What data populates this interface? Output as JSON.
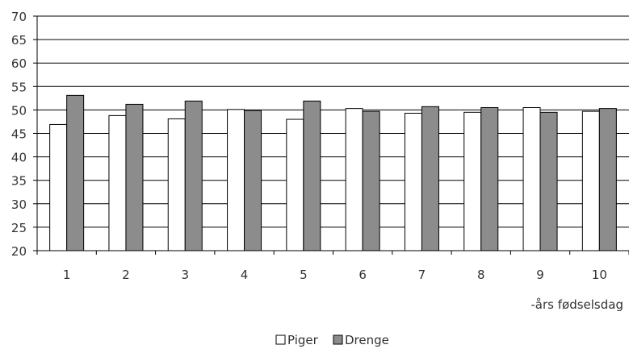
{
  "chart_data": {
    "type": "bar",
    "categories": [
      "1",
      "2",
      "3",
      "4",
      "5",
      "6",
      "7",
      "8",
      "9",
      "10"
    ],
    "series": [
      {
        "name": "Piger",
        "values": [
          46.9,
          48.8,
          48.1,
          50.1,
          48.0,
          50.3,
          49.3,
          49.5,
          50.5,
          49.7
        ],
        "color": "#ffffff"
      },
      {
        "name": "Drenge",
        "values": [
          53.1,
          51.2,
          51.9,
          49.9,
          51.9,
          49.7,
          50.7,
          50.5,
          49.5,
          50.3
        ],
        "color": "#8c8c8c"
      }
    ],
    "xlabel": "-års fødselsdag",
    "ylabel": "",
    "ylim": [
      20,
      70
    ],
    "yticks": [
      20,
      25,
      30,
      35,
      40,
      45,
      50,
      55,
      60,
      65,
      70
    ],
    "grid": true,
    "legend_position": "bottom-center"
  }
}
